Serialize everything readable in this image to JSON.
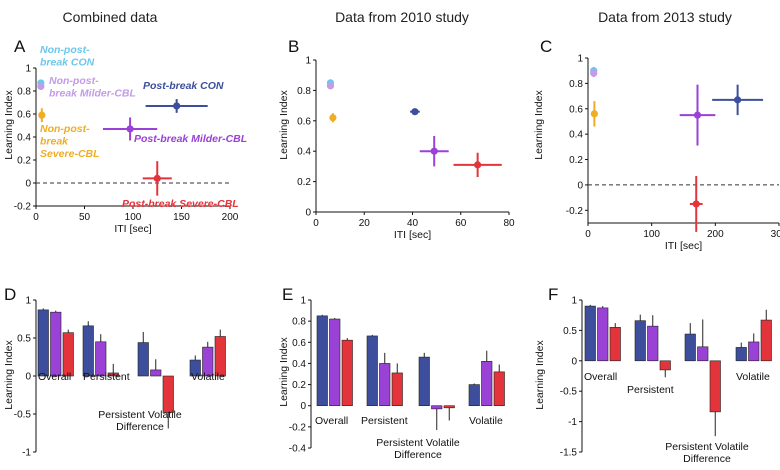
{
  "colors": {
    "con": "#3d4f9c",
    "milder": "#9a41d6",
    "severe": "#e2343a",
    "nonpost_con": "#6ec6ea",
    "nonpost_milder": "#c39be6",
    "nonpost_severe": "#f0ad23",
    "axis": "#111111",
    "zero_line": "#333333"
  },
  "column_titles": [
    "Combined data",
    "Data from 2010 study",
    "Data from 2013 study"
  ],
  "chart_data": [
    {
      "panel": "A",
      "type": "scatter",
      "xlabel": "ITI [sec]",
      "ylabel": "Learning Index",
      "xlim": [
        0,
        200
      ],
      "ylim": [
        -0.2,
        1
      ],
      "xticks": [
        "0",
        "50",
        "100",
        "150",
        "200"
      ],
      "yticks": [
        "-0.2",
        "0",
        "0.2",
        "0.4",
        "0.6",
        "0.8",
        "1"
      ],
      "zero_line": true,
      "points": [
        {
          "label": "Non-post-break CON",
          "color": "nonpost_con",
          "x": 5,
          "y": 0.87,
          "xerr": 2,
          "yerr": 0.03
        },
        {
          "label": "Non-post-break Milder-CBL",
          "color": "nonpost_milder",
          "x": 5,
          "y": 0.84,
          "xerr": 2,
          "yerr": 0.03
        },
        {
          "label": "Non-post-break Severe-CBL",
          "color": "nonpost_severe",
          "x": 6,
          "y": 0.59,
          "xerr": 3,
          "yerr": 0.06
        },
        {
          "label": "Post-break CON",
          "color": "con",
          "x": 145,
          "y": 0.67,
          "xerr": 32,
          "yerr": 0.06
        },
        {
          "label": "Post-break Milder-CBL",
          "color": "milder",
          "x": 97,
          "y": 0.47,
          "xerr": 28,
          "yerr": 0.1
        },
        {
          "label": "Post-break Severe-CBL",
          "color": "severe",
          "x": 125,
          "y": 0.04,
          "xerr": 15,
          "yerr": 0.15
        }
      ],
      "annotations": [
        {
          "lines": [
            "Non-post-",
            "break CON"
          ],
          "color": "nonpost_con"
        },
        {
          "lines": [
            "Non-post-",
            "break Milder-CBL"
          ],
          "color": "nonpost_milder"
        },
        {
          "lines": [
            "Non-post-",
            "break",
            "Severe-CBL"
          ],
          "color": "nonpost_severe"
        },
        {
          "lines": [
            "Post-break CON"
          ],
          "color": "con"
        },
        {
          "lines": [
            "Post-break Milder-CBL"
          ],
          "color": "milder"
        },
        {
          "lines": [
            "Post-break Severe-CBL"
          ],
          "color": "severe"
        }
      ]
    },
    {
      "panel": "B",
      "type": "scatter",
      "xlabel": "ITI [sec]",
      "ylabel": "Learning Index",
      "xlim": [
        0,
        80
      ],
      "ylim": [
        0,
        1
      ],
      "xticks": [
        "0",
        "20",
        "40",
        "60",
        "80"
      ],
      "yticks": [
        "0",
        "0.2",
        "0.4",
        "0.6",
        "0.8",
        "1"
      ],
      "zero_line": false,
      "points": [
        {
          "label": "Non-post-break CON",
          "color": "nonpost_con",
          "x": 6,
          "y": 0.85,
          "xerr": 0.8,
          "yerr": 0.02
        },
        {
          "label": "Non-post-break Milder-CBL",
          "color": "nonpost_milder",
          "x": 6,
          "y": 0.83,
          "xerr": 0.8,
          "yerr": 0.02
        },
        {
          "label": "Non-post-break Severe-CBL",
          "color": "nonpost_severe",
          "x": 7,
          "y": 0.62,
          "xerr": 1,
          "yerr": 0.03
        },
        {
          "label": "Post-break CON",
          "color": "con",
          "x": 41,
          "y": 0.66,
          "xerr": 2,
          "yerr": 0.02
        },
        {
          "label": "Post-break Milder-CBL",
          "color": "milder",
          "x": 49,
          "y": 0.4,
          "xerr": 6,
          "yerr": 0.1
        },
        {
          "label": "Post-break Severe-CBL",
          "color": "severe",
          "x": 67,
          "y": 0.31,
          "xerr": 10,
          "yerr": 0.08
        }
      ]
    },
    {
      "panel": "C",
      "type": "scatter",
      "xlabel": "ITI [sec]",
      "ylabel": "Learning Index",
      "xlim": [
        0,
        300
      ],
      "ylim": [
        -0.3,
        1
      ],
      "xticks": [
        "0",
        "100",
        "200",
        "300"
      ],
      "yticks": [
        "-0.2",
        "0",
        "0.2",
        "0.4",
        "0.6",
        "0.8",
        "1"
      ],
      "zero_line": true,
      "points": [
        {
          "label": "Non-post-break CON",
          "color": "nonpost_con",
          "x": 9,
          "y": 0.9,
          "xerr": 2,
          "yerr": 0.03
        },
        {
          "label": "Non-post-break Milder-CBL",
          "color": "nonpost_milder",
          "x": 9,
          "y": 0.88,
          "xerr": 2,
          "yerr": 0.03
        },
        {
          "label": "Non-post-break Severe-CBL",
          "color": "nonpost_severe",
          "x": 10,
          "y": 0.56,
          "xerr": 2,
          "yerr": 0.1
        },
        {
          "label": "Post-break CON",
          "color": "con",
          "x": 235,
          "y": 0.67,
          "xerr": 40,
          "yerr": 0.12
        },
        {
          "label": "Post-break Milder-CBL",
          "color": "milder",
          "x": 172,
          "y": 0.55,
          "xerr": 28,
          "yerr": 0.24
        },
        {
          "label": "Post-break Severe-CBL",
          "color": "severe",
          "x": 170,
          "y": -0.15,
          "xerr": 10,
          "yerr": 0.22
        }
      ]
    },
    {
      "panel": "D",
      "type": "bar",
      "ylabel": "Learning Index",
      "ylim": [
        -1,
        1
      ],
      "yticks": [
        "-1",
        "-0.5",
        "0",
        "0.5",
        "1"
      ],
      "categories": [
        "Overall",
        "Persistent",
        "Persistent Volatile Difference",
        "Volatile"
      ],
      "series": [
        {
          "color": "con",
          "values": [
            0.87,
            0.66,
            0.44,
            0.21
          ],
          "errors": [
            0.02,
            0.06,
            0.14,
            0.06
          ]
        },
        {
          "color": "milder",
          "values": [
            0.84,
            0.45,
            0.08,
            0.38
          ],
          "errors": [
            0.02,
            0.1,
            0.14,
            0.07
          ]
        },
        {
          "color": "severe",
          "values": [
            0.57,
            0.04,
            -0.48,
            0.52
          ],
          "errors": [
            0.04,
            0.12,
            0.21,
            0.09
          ]
        }
      ]
    },
    {
      "panel": "E",
      "type": "bar",
      "ylabel": "Learning Index",
      "ylim": [
        -0.4,
        1
      ],
      "yticks": [
        "-0.4",
        "-0.2",
        "0",
        "0.2",
        "0.4",
        "0.6",
        "0.8",
        "1"
      ],
      "categories": [
        "Overall",
        "Persistent",
        "Persistent Volatile Difference",
        "Volatile"
      ],
      "series": [
        {
          "color": "con",
          "values": [
            0.85,
            0.66,
            0.46,
            0.2
          ],
          "errors": [
            0.01,
            0.01,
            0.04,
            0.01
          ]
        },
        {
          "color": "milder",
          "values": [
            0.82,
            0.4,
            -0.03,
            0.42
          ],
          "errors": [
            0.01,
            0.1,
            0.2,
            0.1
          ]
        },
        {
          "color": "severe",
          "values": [
            0.62,
            0.31,
            -0.02,
            0.32
          ],
          "errors": [
            0.02,
            0.09,
            0.12,
            0.07
          ]
        }
      ]
    },
    {
      "panel": "F",
      "type": "bar",
      "ylabel": "Learning Index",
      "ylim": [
        -1.5,
        1
      ],
      "yticks": [
        "-1.5",
        "-1",
        "-0.5",
        "0",
        "0.5",
        "1"
      ],
      "categories": [
        "Overall",
        "Persistent",
        "Persistent Volatile Difference",
        "Volatile"
      ],
      "series": [
        {
          "color": "con",
          "values": [
            0.9,
            0.66,
            0.44,
            0.22
          ],
          "errors": [
            0.02,
            0.1,
            0.18,
            0.08
          ]
        },
        {
          "color": "milder",
          "values": [
            0.87,
            0.57,
            0.23,
            0.31
          ],
          "errors": [
            0.03,
            0.18,
            0.45,
            0.14
          ]
        },
        {
          "color": "severe",
          "values": [
            0.55,
            -0.15,
            -0.84,
            0.67
          ],
          "errors": [
            0.07,
            0.12,
            0.4,
            0.17
          ]
        }
      ]
    }
  ]
}
